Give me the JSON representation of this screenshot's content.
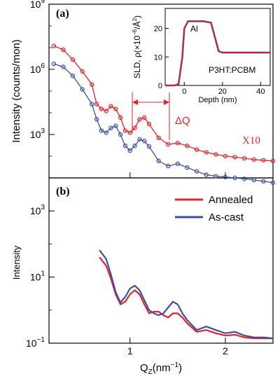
{
  "colors": {
    "red": "#e8202a",
    "blue": "#3b4fa3",
    "axis": "#000000"
  },
  "chart_data": [
    {
      "panel": "(a)",
      "type": "scatter",
      "ylabel": "Intensity (counts/mon)",
      "yscale": "log",
      "ylim": [
        10,
        1000000000
      ],
      "xlim": [
        0.15,
        2.5
      ],
      "y_ticks": [
        {
          "v": 1000000000.0,
          "base": "10",
          "exp": "9"
        },
        {
          "v": 1000000.0,
          "base": "10",
          "exp": "6"
        },
        {
          "v": 1000.0,
          "base": "10",
          "exp": "3"
        }
      ],
      "annotations": {
        "multiplier": "X10",
        "delta_q": "ΔQ",
        "delta_q_range": [
          1.0,
          1.4
        ]
      },
      "series": [
        {
          "color": "red",
          "x": [
            0.2,
            0.3,
            0.4,
            0.5,
            0.6,
            0.65,
            0.7,
            0.75,
            0.8,
            0.85,
            0.9,
            0.95,
            1.0,
            1.05,
            1.1,
            1.15,
            1.2,
            1.3,
            1.4,
            1.5,
            1.6,
            1.7,
            1.8,
            1.9,
            2.0,
            2.1,
            2.2,
            2.3,
            2.4,
            2.5
          ],
          "y": [
            12000000.0,
            8000000.0,
            2800000.0,
            800000.0,
            200000.0,
            25000.0,
            15000.0,
            12000.0,
            20000.0,
            15000.0,
            6000,
            1500,
            1200,
            2000,
            5000,
            6000,
            3000,
            700,
            350,
            400,
            300,
            200,
            150,
            120,
            100,
            90,
            80,
            70,
            65,
            60
          ]
        },
        {
          "color": "blue",
          "x": [
            0.2,
            0.3,
            0.4,
            0.5,
            0.6,
            0.65,
            0.7,
            0.75,
            0.8,
            0.85,
            0.9,
            0.95,
            1.0,
            1.05,
            1.1,
            1.15,
            1.2,
            1.3,
            1.4,
            1.5,
            1.6,
            1.7,
            1.8,
            1.9,
            2.0,
            2.1,
            2.2,
            2.3,
            2.4,
            2.5
          ],
          "y": [
            1800000.0,
            1300000.0,
            500000.0,
            120000.0,
            25000.0,
            5000,
            1500,
            1200,
            2000,
            2500,
            1000,
            300,
            180,
            300,
            600,
            500,
            280,
            60,
            35,
            45,
            30,
            20,
            14,
            12,
            11,
            10,
            9,
            8,
            7,
            6
          ]
        }
      ]
    },
    {
      "panel": "(b)",
      "type": "line",
      "xlabel_main": "Q",
      "xlabel_sub": "Z",
      "xlabel_unit": "(nm",
      "xlabel_exp": "−1",
      "xlabel_close": ")",
      "ylabel": "Intensity",
      "yscale": "log",
      "ylim": [
        0.1,
        10000
      ],
      "xlim": [
        0.15,
        2.5
      ],
      "x_ticks": [
        1,
        2
      ],
      "y_ticks": [
        {
          "v": 1000,
          "base": "10",
          "exp": "3"
        },
        {
          "v": 10,
          "base": "10",
          "exp": "1"
        },
        {
          "v": 0.1,
          "base": "10",
          "exp": "−1"
        }
      ],
      "legend": {
        "position": "top-right"
      },
      "series": [
        {
          "name": "Annealed",
          "color": "red",
          "x": [
            0.68,
            0.75,
            0.8,
            0.85,
            0.9,
            0.95,
            1.0,
            1.05,
            1.1,
            1.15,
            1.2,
            1.25,
            1.3,
            1.35,
            1.4,
            1.45,
            1.5,
            1.55,
            1.6,
            1.7,
            1.8,
            1.9,
            2.0,
            2.1,
            2.2,
            2.3,
            2.4,
            2.5
          ],
          "y": [
            40,
            22,
            9,
            3,
            1.5,
            1.8,
            3,
            4,
            3,
            1.5,
            0.8,
            0.9,
            0.9,
            0.7,
            0.6,
            0.8,
            0.8,
            0.6,
            0.4,
            0.22,
            0.25,
            0.2,
            0.17,
            0.18,
            0.15,
            0.14,
            0.14,
            0.14
          ]
        },
        {
          "name": "As-cast",
          "color": "blue",
          "x": [
            0.68,
            0.75,
            0.8,
            0.85,
            0.9,
            0.95,
            1.0,
            1.05,
            1.1,
            1.15,
            1.2,
            1.25,
            1.3,
            1.35,
            1.4,
            1.45,
            1.5,
            1.55,
            1.6,
            1.7,
            1.8,
            1.9,
            2.0,
            2.1,
            2.2,
            2.3,
            2.4,
            2.5
          ],
          "y": [
            65,
            35,
            12,
            3.5,
            1.7,
            2.5,
            4.5,
            5.5,
            4,
            2,
            1,
            0.8,
            0.7,
            0.8,
            1.2,
            1.8,
            1.5,
            0.8,
            0.5,
            0.25,
            0.32,
            0.25,
            0.2,
            0.22,
            0.17,
            0.15,
            0.15,
            0.14
          ]
        }
      ]
    },
    {
      "panel": "inset",
      "type": "line",
      "xlabel": "Depth (nm)",
      "ylabel_parts": [
        "SLD, ρ(×10",
        "−6",
        "/Å",
        "2",
        ")"
      ],
      "xlim": [
        -10,
        45
      ],
      "ylim": [
        0,
        27
      ],
      "x_ticks": [
        0,
        20,
        40
      ],
      "y_ticks": [
        0,
        10,
        20
      ],
      "labels": {
        "layer1": "Al",
        "layer2": "P3HT:PCBM"
      },
      "series": [
        {
          "color": "blue",
          "x": [
            -10,
            -5,
            -3,
            -1,
            0,
            2,
            4,
            10,
            14,
            16,
            18,
            20,
            25,
            30,
            45
          ],
          "y": [
            0,
            0,
            0.5,
            10,
            20,
            22.5,
            22.5,
            22.5,
            22,
            17,
            12,
            11.5,
            11.5,
            11.5,
            11.5
          ]
        },
        {
          "color": "red",
          "x": [
            -10,
            -5,
            -3,
            -1,
            0,
            2,
            4,
            10,
            14,
            16,
            18,
            20,
            25,
            30,
            45
          ],
          "y": [
            0,
            0,
            0.5,
            10,
            20,
            22.5,
            22.5,
            22.5,
            22,
            17,
            12,
            11.5,
            11.5,
            11.5,
            11.5
          ]
        }
      ]
    }
  ]
}
